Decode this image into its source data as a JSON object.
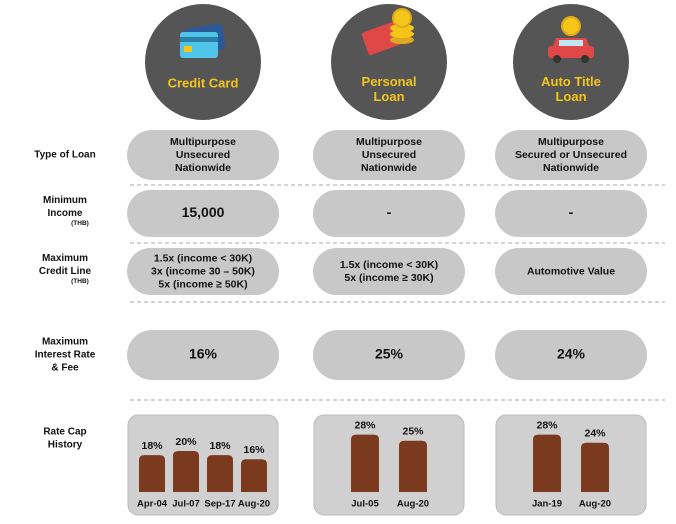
{
  "columns": [
    {
      "title": [
        "Credit Card"
      ]
    },
    {
      "title": [
        "Personal",
        "Loan"
      ]
    },
    {
      "title": [
        "Auto Title",
        "Loan"
      ]
    }
  ],
  "rows": [
    {
      "label": [
        "Type of Loan"
      ],
      "cells": [
        [
          "Multipurpose",
          "Unsecured",
          "Nationwide"
        ],
        [
          "Multipurpose",
          "Unsecured",
          "Nationwide"
        ],
        [
          "Multipurpose",
          "Secured or Unsecured",
          "Nationwide"
        ]
      ]
    },
    {
      "label": [
        "Minimum",
        "Income"
      ],
      "note": "(THB)",
      "cells": [
        [
          "15,000"
        ],
        [
          "-"
        ],
        [
          "-"
        ]
      ]
    },
    {
      "label": [
        "Maximum",
        "Credit Line"
      ],
      "note": "(THB)",
      "cells": [
        [
          "1.5x (income < 30K)",
          "3x (income 30 – 50K)",
          "5x (income ≥ 50K)"
        ],
        [
          "1.5x (income < 30K)",
          "5x (income ≥ 30K)"
        ],
        [
          "Automotive Value"
        ]
      ]
    },
    {
      "label": [
        "Maximum",
        "Interest Rate",
        "& Fee"
      ],
      "cells": [
        [
          "16%"
        ],
        [
          "25%"
        ],
        [
          "24%"
        ]
      ]
    }
  ],
  "rate_cap": {
    "label": [
      "Rate Cap",
      "History"
    ],
    "charts": [
      {
        "type": "bar",
        "categories": [
          "Apr-04",
          "Jul-07",
          "Sep-17",
          "Aug-20"
        ],
        "values": [
          18,
          20,
          18,
          16
        ],
        "value_labels": [
          "18%",
          "20%",
          "18%",
          "16%"
        ]
      },
      {
        "type": "bar",
        "categories": [
          "Jul-05",
          "Aug-20"
        ],
        "values": [
          28,
          25
        ],
        "value_labels": [
          "28%",
          "25%"
        ]
      },
      {
        "type": "bar",
        "categories": [
          "Jan-19",
          "Aug-20"
        ],
        "values": [
          28,
          24
        ],
        "value_labels": [
          "28%",
          "24%"
        ]
      }
    ]
  }
}
